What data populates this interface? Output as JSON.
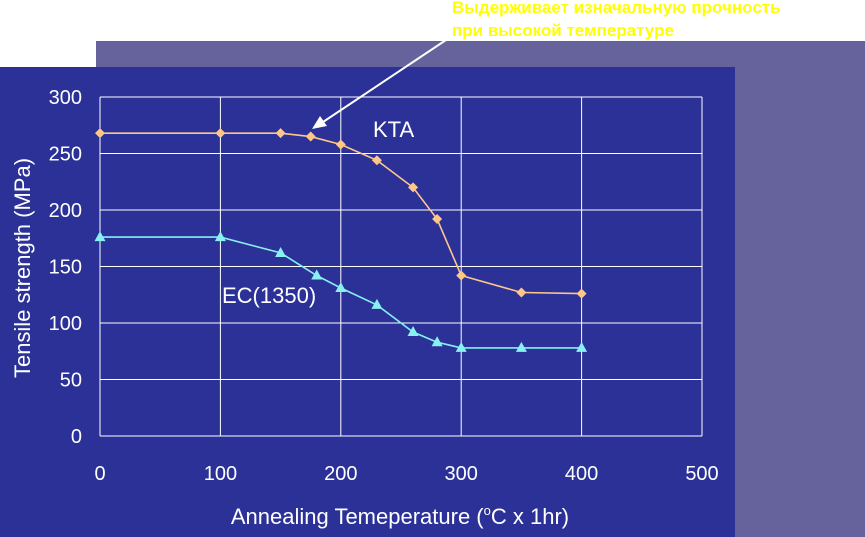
{
  "colors": {
    "page_background": "#ffffff",
    "back_panel": "#66629c",
    "plot_panel": "#2b3196",
    "grid": "#ffffff",
    "kta_series": "#ffc68a",
    "ec_series": "#88f0f0",
    "annotation_text": "#ffff00",
    "text": "#ffffff"
  },
  "annotation": {
    "line1": "Выдерживает изначальную прочность",
    "line2": "при высокой температуре"
  },
  "chart_data": {
    "type": "line",
    "title": "",
    "xlabel": "Annealing Temeperature (",
    "xlabel_degree": "o",
    "xlabel_tail": "C x 1hr)",
    "ylabel": "Tensile strength (MPa)",
    "xlim": [
      0,
      500
    ],
    "ylim": [
      0,
      300
    ],
    "x_ticks": [
      "0",
      "100",
      "200",
      "300",
      "400",
      "500"
    ],
    "y_ticks": [
      "0",
      "50",
      "100",
      "150",
      "200",
      "250",
      "300"
    ],
    "grid": true,
    "series": [
      {
        "name": "KTA",
        "marker": "diamond",
        "x": [
          0,
          100,
          150,
          175,
          200,
          230,
          260,
          280,
          300,
          350,
          400
        ],
        "y": [
          268,
          268,
          268,
          265,
          258,
          244,
          220,
          192,
          142,
          127,
          126
        ]
      },
      {
        "name": "EC(1350)",
        "marker": "triangle",
        "x": [
          0,
          100,
          150,
          180,
          200,
          230,
          260,
          280,
          300,
          350,
          400
        ],
        "y": [
          176,
          176,
          162,
          142,
          131,
          116,
          92,
          83,
          78,
          78,
          78
        ]
      }
    ]
  }
}
